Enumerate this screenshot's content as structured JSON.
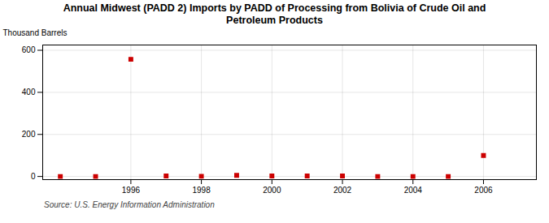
{
  "chart_data": {
    "type": "scatter",
    "title": "Annual Midwest (PADD 2) Imports by PADD of Processing from Bolivia of Crude Oil and\nPetroleum Products",
    "ylabel": "Thousand Barrels",
    "annotations": [
      "Source: U.S. Energy Information Administration"
    ],
    "x": [
      1994,
      1995,
      1996,
      1997,
      1998,
      1999,
      2000,
      2001,
      2002,
      2003,
      2004,
      2005,
      2006
    ],
    "values": [
      0,
      0,
      557,
      2,
      1,
      5,
      2,
      2,
      2,
      0,
      0,
      0,
      100
    ],
    "color": "#cc0000",
    "marker": "square",
    "xlim": [
      1993.5,
      2007.5
    ],
    "xticks": [
      1996,
      1998,
      2000,
      2002,
      2004,
      2006
    ],
    "ylim": [
      -15,
      625
    ],
    "yticks": [
      0,
      200,
      400,
      600
    ],
    "grid": true
  }
}
